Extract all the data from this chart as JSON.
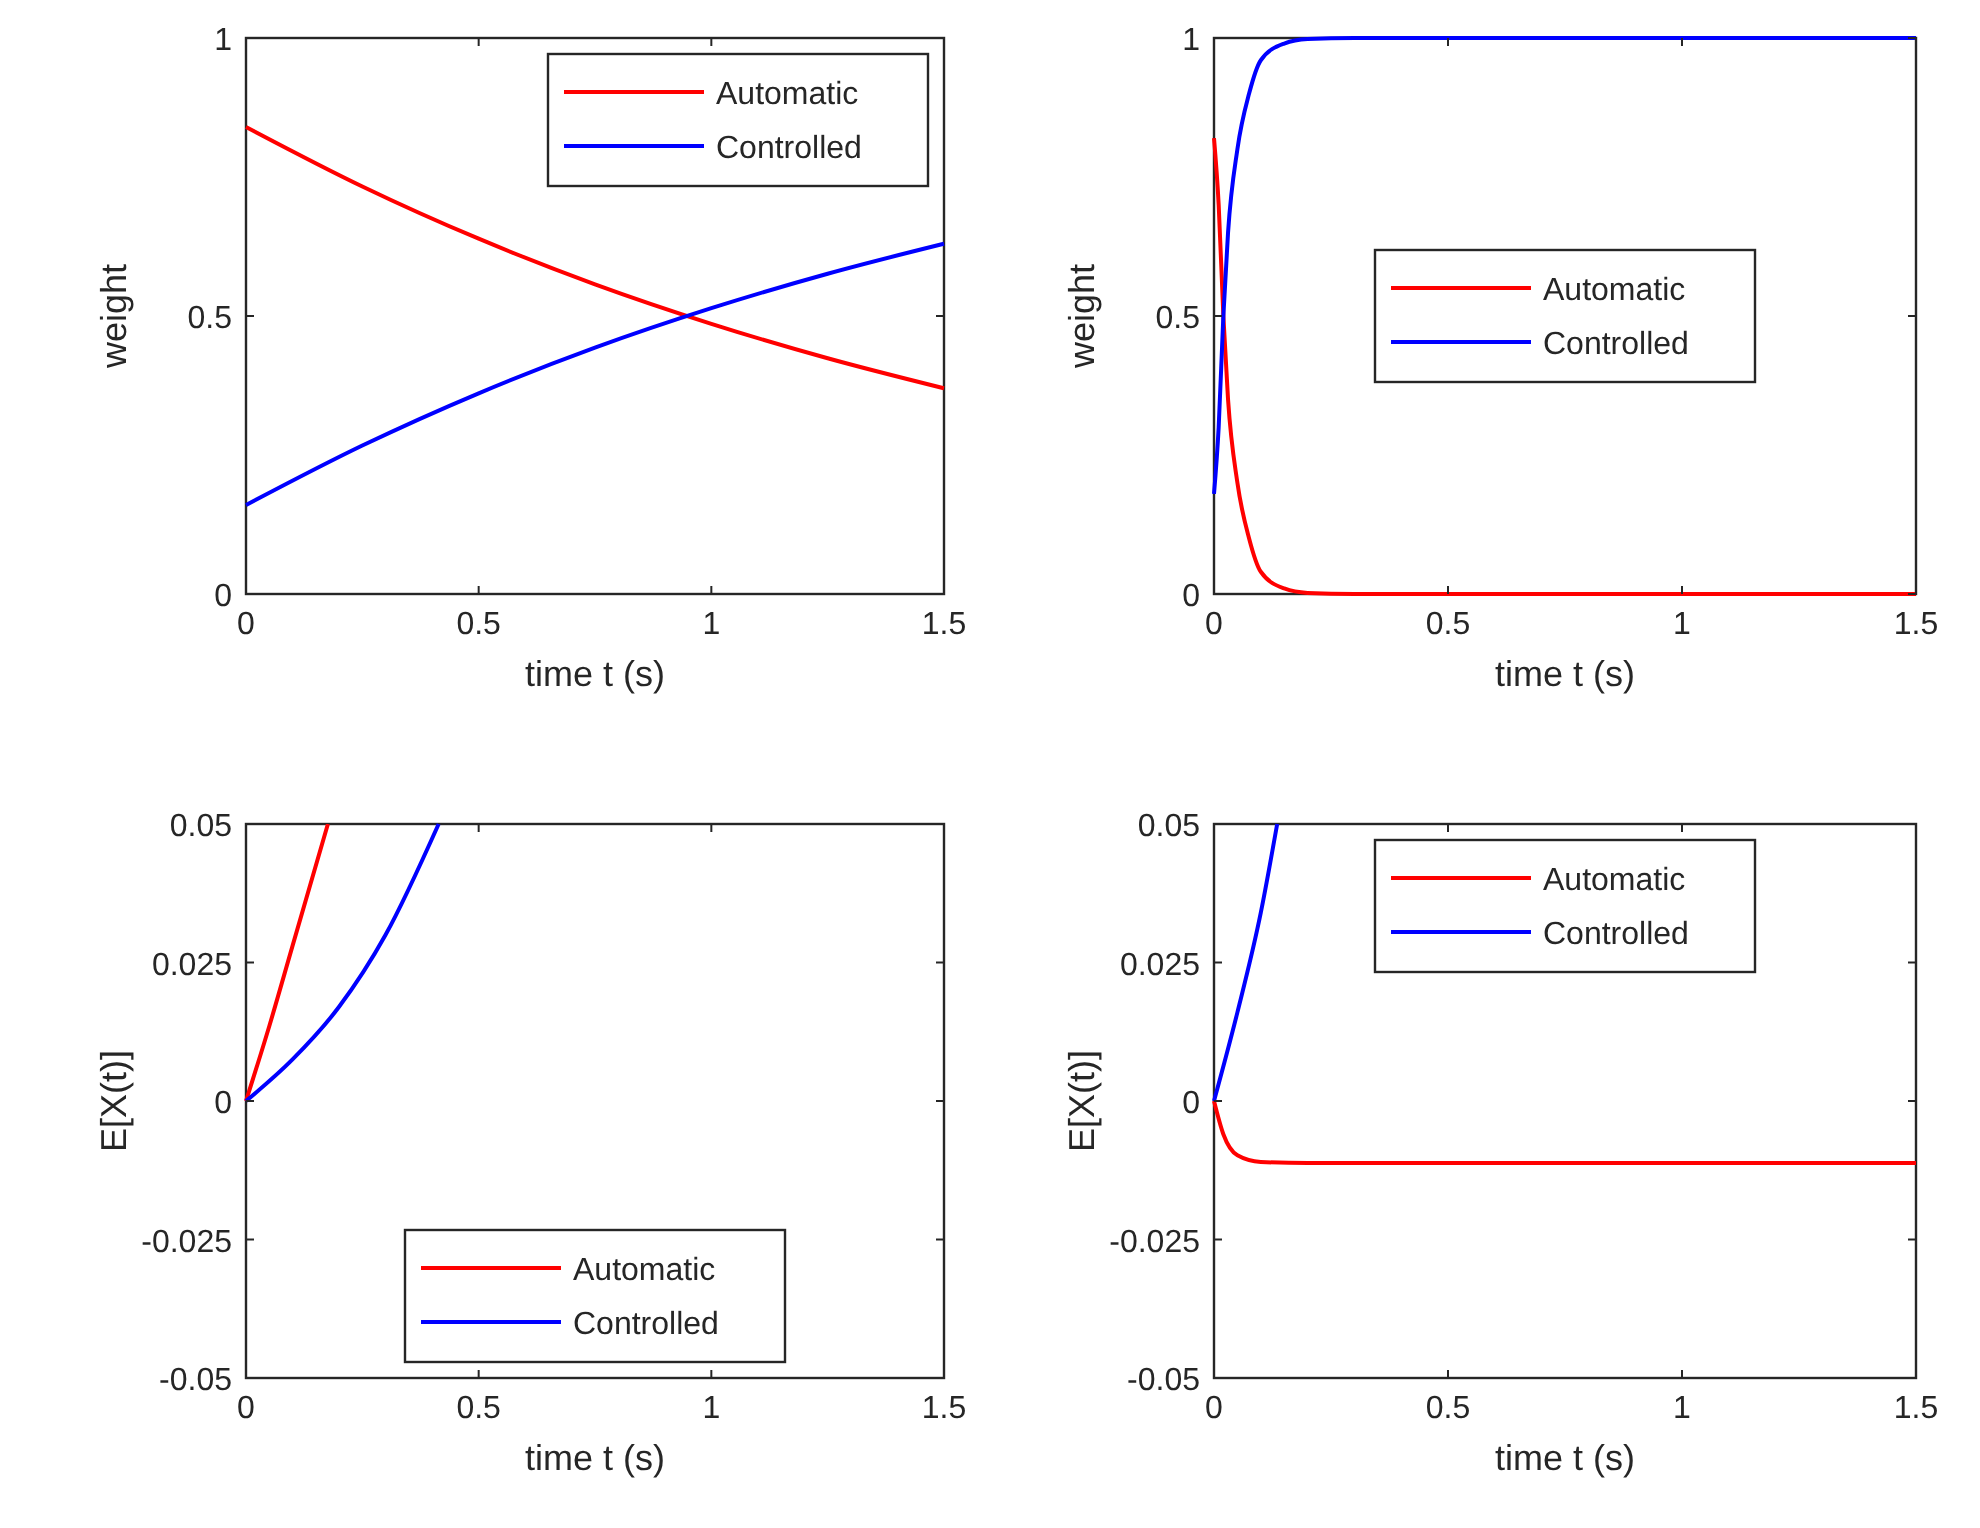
{
  "chart_data": [
    {
      "type": "line",
      "xlabel": "time t (s)",
      "ylabel": "weight",
      "xlim": [
        0,
        1.5
      ],
      "xticks": [
        0,
        0.5,
        1,
        1.5
      ],
      "ylim": [
        0,
        1
      ],
      "yticks": [
        0,
        0.5,
        1
      ],
      "legend": "top right",
      "x": [
        0,
        0.25,
        0.5,
        0.75,
        1,
        1.25,
        1.5
      ],
      "series": [
        {
          "name": "Automatic",
          "color": "#ff0000",
          "values": [
            0.84,
            0.733,
            0.639,
            0.557,
            0.486,
            0.424,
            0.37
          ]
        },
        {
          "name": "Controlled",
          "color": "#0000ff",
          "values": [
            0.16,
            0.267,
            0.361,
            0.443,
            0.514,
            0.576,
            0.63
          ]
        }
      ]
    },
    {
      "type": "line",
      "xlabel": "time t (s)",
      "ylabel": "weight",
      "xlim": [
        0,
        1.5
      ],
      "xticks": [
        0,
        0.5,
        1,
        1.5
      ],
      "ylim": [
        0,
        1
      ],
      "yticks": [
        0,
        0.5,
        1
      ],
      "legend": "center",
      "x": [
        0,
        0.01,
        0.02,
        0.03,
        0.05,
        0.075,
        0.1,
        0.15,
        0.2,
        0.3,
        1.5
      ],
      "series": [
        {
          "name": "Automatic",
          "color": "#ff0000",
          "values": [
            0.82,
            0.7,
            0.5,
            0.35,
            0.2,
            0.1,
            0.04,
            0.01,
            0.002,
            0,
            0
          ]
        },
        {
          "name": "Controlled",
          "color": "#0000ff",
          "values": [
            0.18,
            0.3,
            0.5,
            0.65,
            0.8,
            0.9,
            0.96,
            0.99,
            0.998,
            1,
            1
          ]
        }
      ]
    },
    {
      "type": "line",
      "xlabel": "time t (s)",
      "ylabel": "E[X(t)]",
      "xlim": [
        0,
        1.5
      ],
      "xticks": [
        0,
        0.5,
        1,
        1.5
      ],
      "ylim": [
        -0.05,
        0.05
      ],
      "yticks": [
        -0.05,
        -0.025,
        0,
        0.025,
        0.05
      ],
      "legend": "bottom",
      "series": [
        {
          "name": "Automatic",
          "color": "#ff0000",
          "x": [
            0,
            0.05,
            0.1,
            0.176
          ],
          "values": [
            0,
            0.0135,
            0.028,
            0.05
          ]
        },
        {
          "name": "Controlled",
          "color": "#0000ff",
          "x": [
            0,
            0.1,
            0.2,
            0.3,
            0.414
          ],
          "values": [
            0,
            0.0075,
            0.017,
            0.03,
            0.05
          ]
        }
      ]
    },
    {
      "type": "line",
      "xlabel": "time t (s)",
      "ylabel": "E[X(t)]",
      "xlim": [
        0,
        1.5
      ],
      "xticks": [
        0,
        0.5,
        1,
        1.5
      ],
      "ylim": [
        -0.05,
        0.05
      ],
      "yticks": [
        -0.05,
        -0.025,
        0,
        0.025,
        0.05
      ],
      "legend": "top",
      "series": [
        {
          "name": "Automatic",
          "color": "#ff0000",
          "x": [
            0,
            0.02,
            0.05,
            0.1,
            0.2,
            1.5
          ],
          "values": [
            0,
            -0.006,
            -0.0098,
            -0.011,
            -0.0112,
            -0.0112
          ]
        },
        {
          "name": "Controlled",
          "color": "#0000ff",
          "x": [
            0,
            0.05,
            0.1,
            0.135
          ],
          "values": [
            0,
            0.016,
            0.034,
            0.05
          ]
        }
      ]
    }
  ]
}
